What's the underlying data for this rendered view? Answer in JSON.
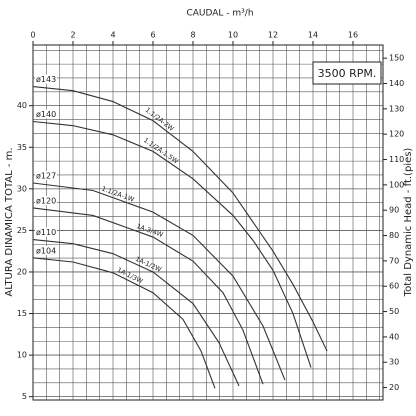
{
  "chart_data": {
    "type": "line",
    "x_label": "CAUDAL - m³/h",
    "y_label": "ALTURA DINAMICA TOTAL - m.",
    "y2_label": "Total Dynamic Head - ft.(pies)",
    "annotation": "3500 RPM.",
    "xlim": [
      0,
      17.5
    ],
    "xticks": [
      0,
      2,
      4,
      6,
      8,
      10,
      12,
      14,
      16
    ],
    "ylim": [
      4.6,
      47.3
    ],
    "yticks": [
      5,
      10,
      15,
      20,
      25,
      30,
      35,
      40
    ],
    "y2lim": [
      15.1,
      155.2
    ],
    "y2ticks": [
      20,
      30,
      40,
      50,
      60,
      70,
      80,
      90,
      100,
      110,
      120,
      130,
      140,
      150
    ],
    "grid": true,
    "series": [
      {
        "name": "1.1/2A-2W",
        "diameter_label": "ø143",
        "color": "#333333",
        "x": [
          0,
          2,
          4,
          6,
          8,
          10,
          12,
          13,
          14,
          14.7
        ],
        "values": [
          42.3,
          41.8,
          40.5,
          38.2,
          34.5,
          29.5,
          22.5,
          18.5,
          14,
          10.5
        ]
      },
      {
        "name": "1.1/2A-1.5W",
        "diameter_label": "ø140",
        "color": "#333333",
        "x": [
          0,
          2,
          4,
          6,
          8,
          10,
          11,
          12,
          13,
          13.9
        ],
        "values": [
          38.1,
          37.6,
          36.5,
          34.5,
          31.2,
          26.8,
          23.8,
          20.2,
          15,
          8.5
        ]
      },
      {
        "name": "1.1/2A-1W",
        "diameter_label": "ø127",
        "color": "#333333",
        "x": [
          0,
          3,
          6,
          8,
          10,
          11.5,
          12.6
        ],
        "values": [
          30.7,
          29.8,
          27.2,
          24.4,
          19.5,
          13.5,
          7
        ]
      },
      {
        "name": "1A-3/4W",
        "diameter_label": "ø120",
        "color": "#333333",
        "x": [
          0,
          3,
          6,
          8,
          9.5,
          10.5,
          11.5
        ],
        "values": [
          27.7,
          26.8,
          24.2,
          21.3,
          17.5,
          13,
          6.5
        ]
      },
      {
        "name": "1A-1/2W",
        "diameter_label": "ø110",
        "color": "#333333",
        "x": [
          0,
          2,
          4,
          6,
          8,
          9.3,
          10.3
        ],
        "values": [
          23.9,
          23.4,
          22.2,
          20,
          16.2,
          11.5,
          6.3
        ]
      },
      {
        "name": "1A-1/3W",
        "diameter_label": "ø104",
        "color": "#333333",
        "x": [
          0,
          2,
          4,
          6,
          7.5,
          8.4,
          9.1
        ],
        "values": [
          21.7,
          21.2,
          19.9,
          17.5,
          14.3,
          10.5,
          6
        ]
      }
    ]
  }
}
